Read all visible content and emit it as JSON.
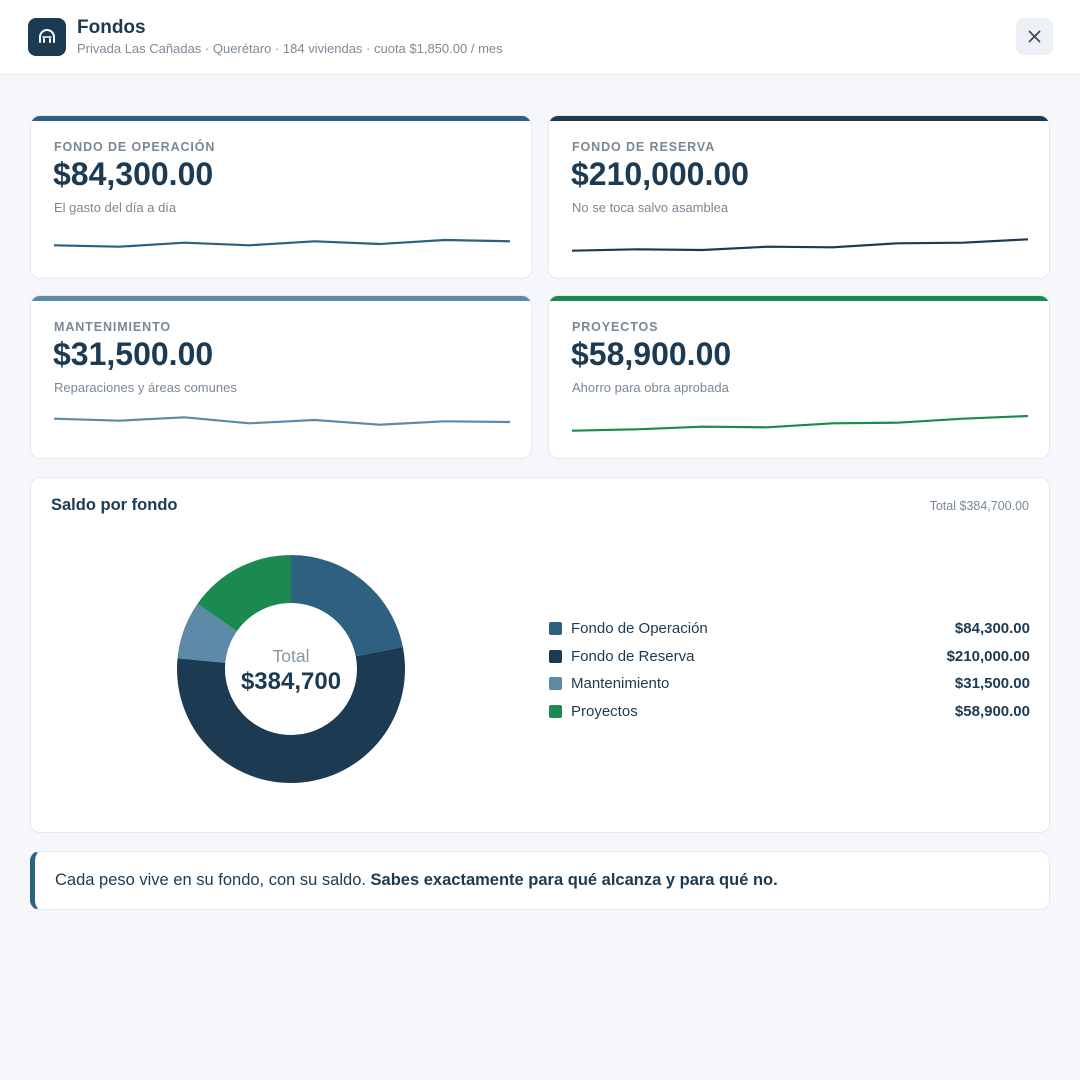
{
  "header": {
    "title": "Fondos",
    "subtitle": "Privada Las Cañadas · Querétaro · 184 viviendas · cuota $1,850.00 / mes",
    "logo_icon": "dome-icon",
    "close_icon": "close-icon"
  },
  "funds": [
    {
      "label": "FONDO DE OPERACIÓN",
      "amount": "$84,300.00",
      "description": "El gasto del día a día",
      "color": "#2d6081",
      "trend": [
        54,
        53,
        56,
        54,
        57,
        55,
        58,
        57
      ]
    },
    {
      "label": "FONDO DE RESERVA",
      "amount": "$210,000.00",
      "description": "No se toca salvo asamblea",
      "color": "#1c3a51",
      "trend": [
        50,
        51,
        50.5,
        53,
        52.5,
        55.5,
        56,
        58.5
      ]
    },
    {
      "label": "MANTENIMIENTO",
      "amount": "$31,500.00",
      "description": "Reparaciones y áreas comunes",
      "color": "#5d8aa7",
      "trend": [
        59,
        57.5,
        60,
        55.5,
        58,
        54.5,
        57,
        56.5
      ]
    },
    {
      "label": "PROYECTOS",
      "amount": "$58,900.00",
      "description": "Ahorro para obra aprobada",
      "color": "#1b8a50",
      "trend": [
        50,
        51,
        53,
        52.5,
        55.5,
        56,
        59,
        61
      ]
    }
  ],
  "breakdown": {
    "title": "Saldo por fondo",
    "total_text": "Total $384,700.00",
    "center_label": "Total",
    "center_value": "$384,700"
  },
  "chart_data": {
    "type": "pie",
    "categories": [
      "Fondo de Operación",
      "Fondo de Reserva",
      "Mantenimiento",
      "Proyectos"
    ],
    "values": [
      84300,
      210000,
      31500,
      58900
    ],
    "value_labels": [
      "$84,300.00",
      "$210,000.00",
      "$31,500.00",
      "$58,900.00"
    ],
    "colors": [
      "#2d6081",
      "#1c3a51",
      "#5d8aa7",
      "#1b8a50"
    ],
    "legend_placement": "right"
  },
  "note": {
    "text": "Cada peso vive en su fondo, con su saldo. ",
    "emphasis": "Sabes exactamente para qué alcanza y para qué no."
  }
}
